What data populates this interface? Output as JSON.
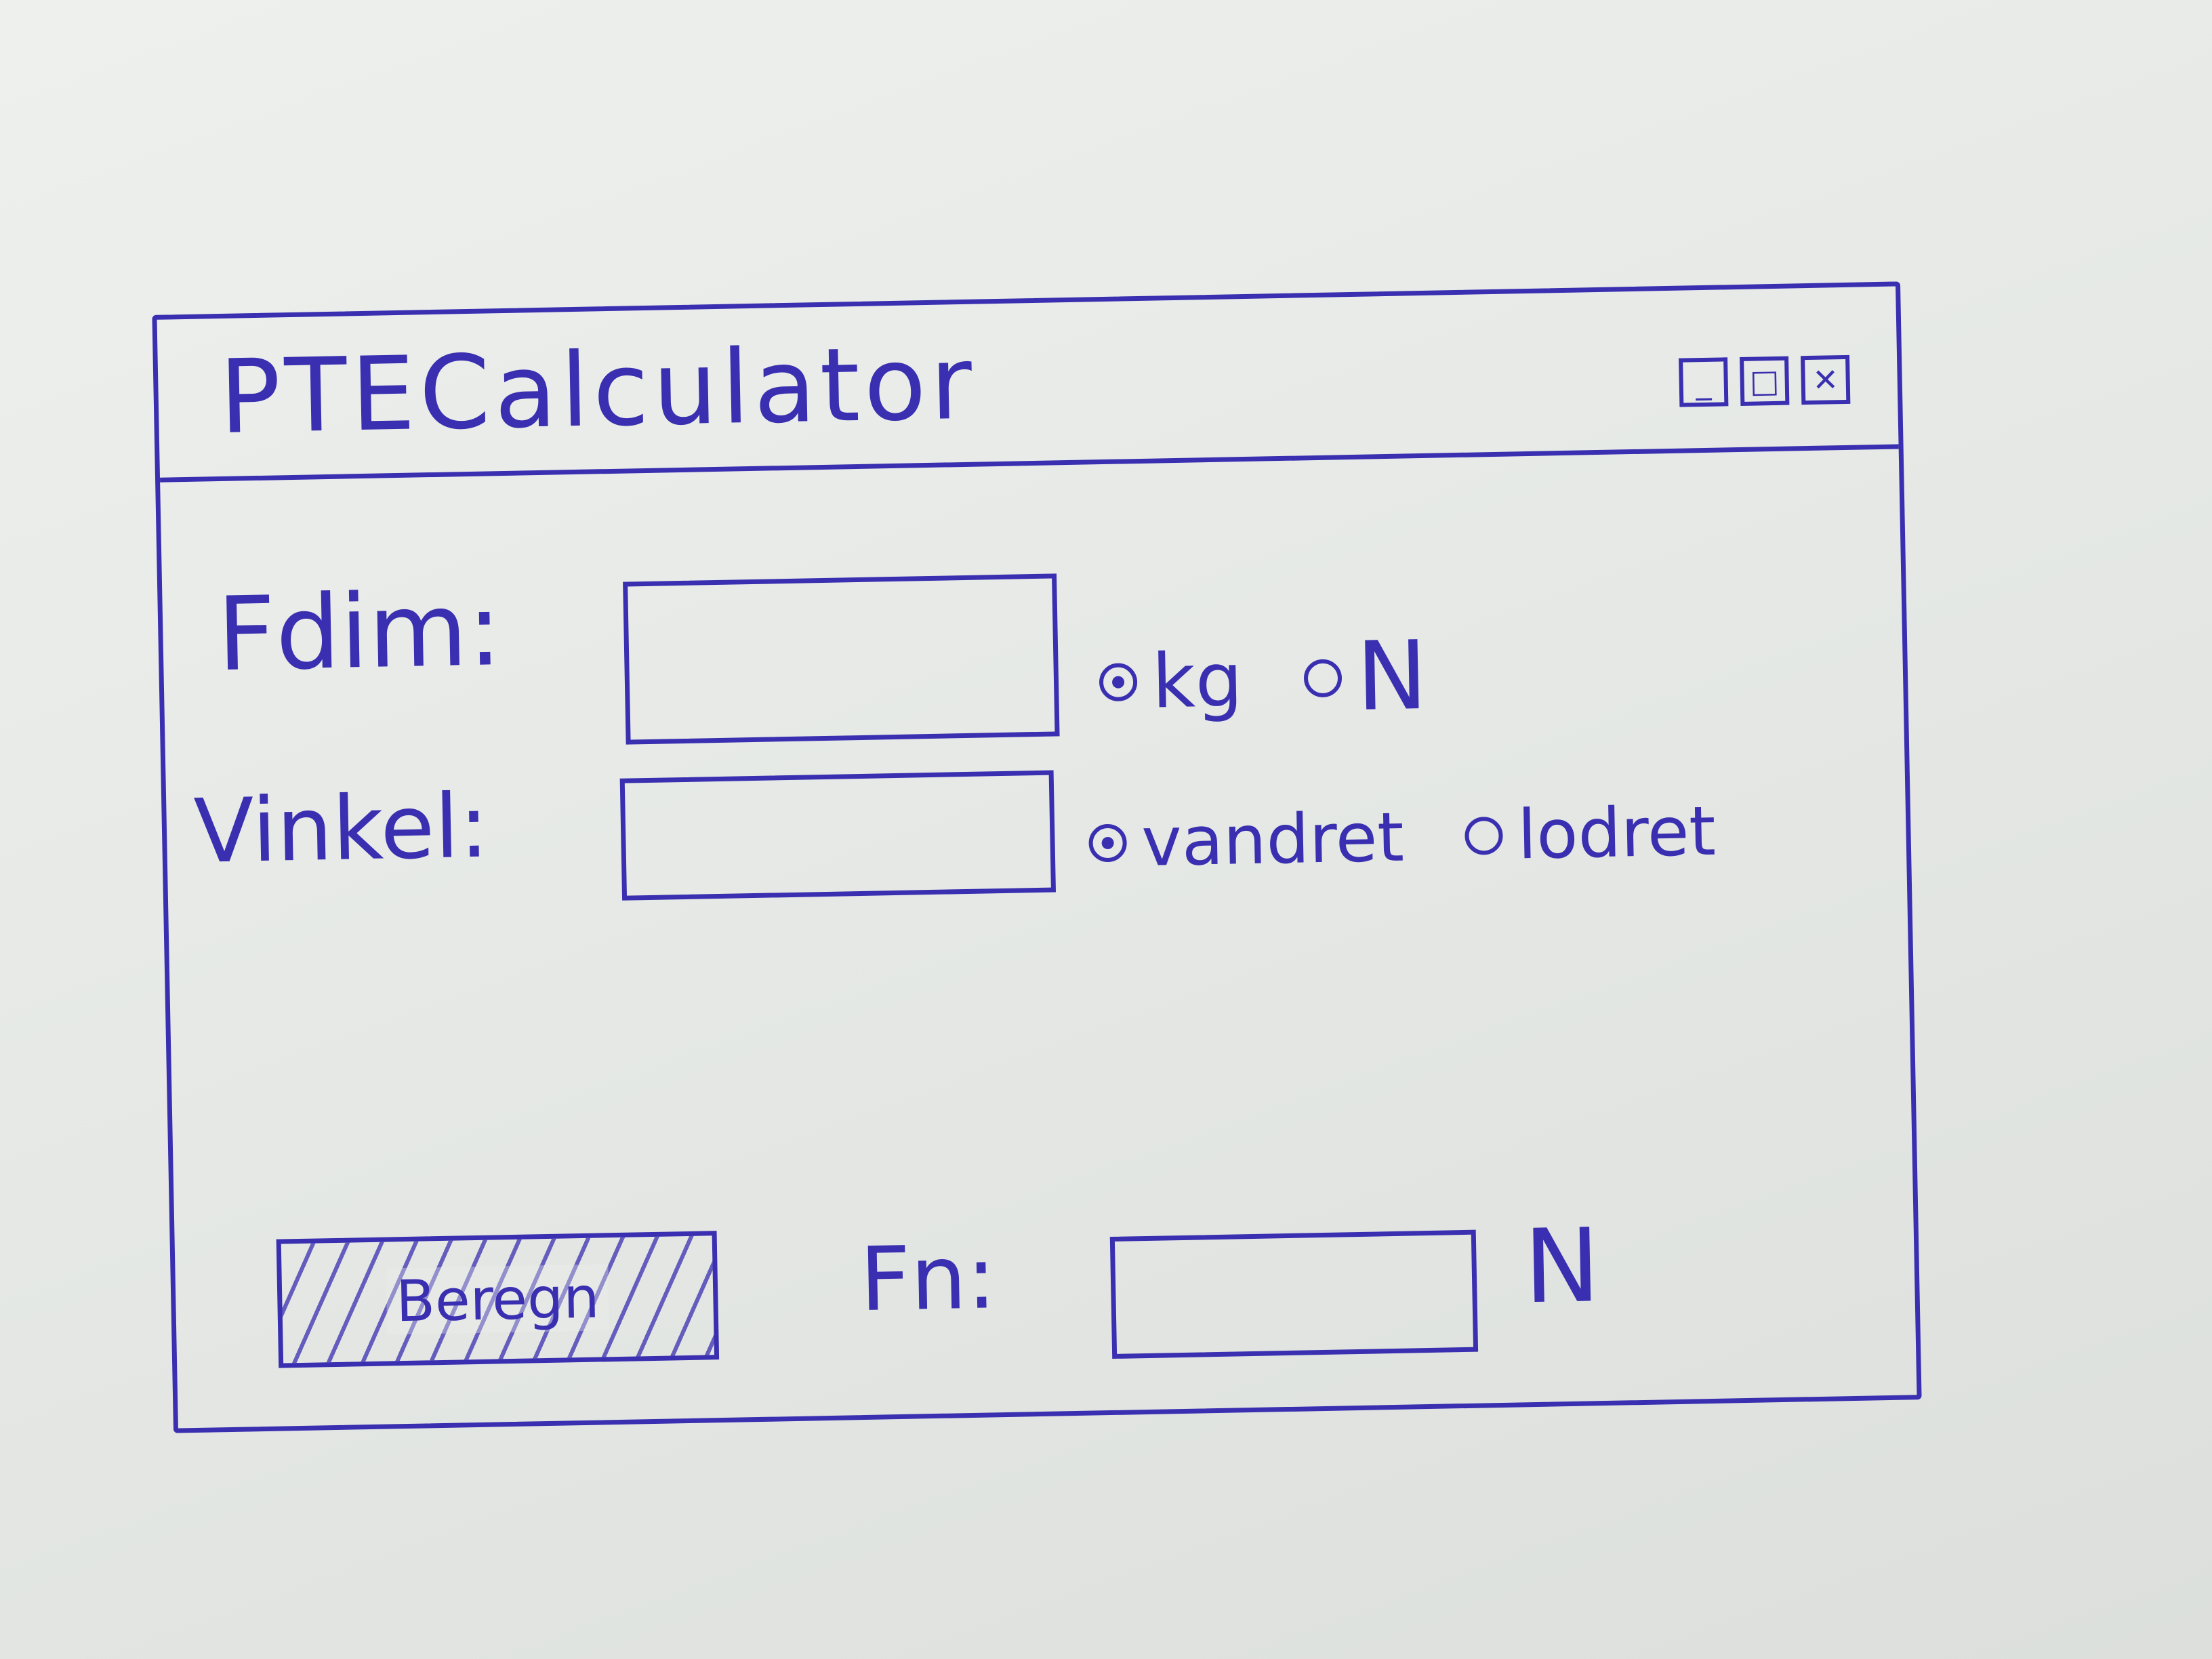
{
  "window": {
    "title": "PTECalculator",
    "controls": {
      "minimize_glyph": "_",
      "maximize_glyph": "□",
      "close_glyph": "✕"
    }
  },
  "form": {
    "fdim": {
      "label": "Fdim:",
      "value": "",
      "unit_options": [
        {
          "label": "kg",
          "selected": true
        },
        {
          "label": "N",
          "selected": false
        }
      ]
    },
    "vinkel": {
      "label": "Vinkel:",
      "value": "",
      "orientation_options": [
        {
          "label": "vandret",
          "selected": true
        },
        {
          "label": "lodret",
          "selected": false
        }
      ]
    },
    "result": {
      "label": "Fn:",
      "value": "",
      "unit": "N"
    },
    "calculate_button": {
      "label": "Beregn"
    }
  },
  "colors": {
    "ink": "#3a2fb0",
    "paper": "#e8ebe8"
  }
}
